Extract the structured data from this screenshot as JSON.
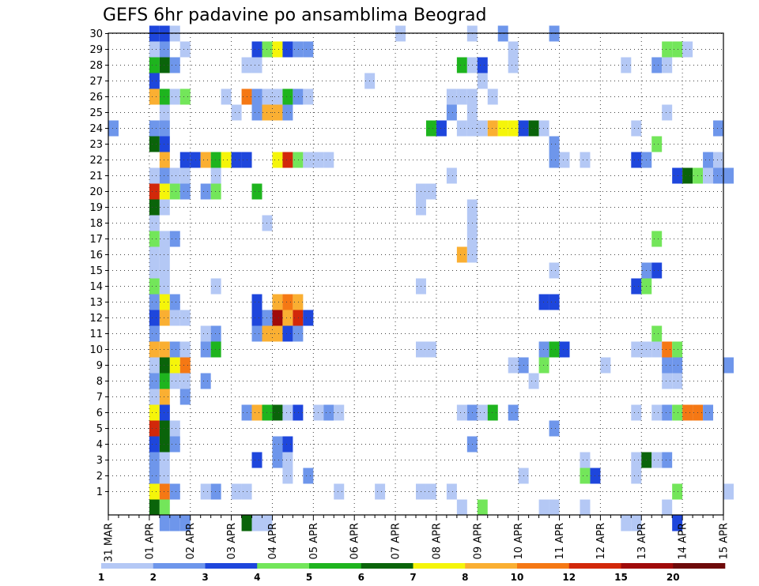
{
  "chart_data": {
    "type": "heatmap",
    "title": "GEFS 6hr padavine po ansamblima Beograd",
    "x_tick_labels": [
      "31 MAR",
      "01 APR",
      "02 APR",
      "03 APR",
      "04 APR",
      "05 APR",
      "06 APR",
      "07 APR",
      "08 APR",
      "09 APR",
      "10 APR",
      "11 APR",
      "12 APR",
      "13 APR",
      "14 APR",
      "15 APR"
    ],
    "y_tick_labels": [
      "1",
      "2",
      "3",
      "4",
      "5",
      "6",
      "7",
      "8",
      "9",
      "10",
      "11",
      "12",
      "13",
      "14",
      "15",
      "16",
      "17",
      "18",
      "19",
      "20",
      "21",
      "22",
      "23",
      "24",
      "25",
      "26",
      "27",
      "28",
      "29",
      "30"
    ],
    "x_unit": "6-hour step (4 per day)",
    "ylim": [
      0,
      30
    ],
    "grid": true,
    "legend_placement": "bottom",
    "colorbar": {
      "labels": [
        "1",
        "2",
        "3",
        "4",
        "5",
        "6",
        "7",
        "8",
        "10",
        "12",
        "15",
        "20"
      ],
      "colors": [
        "#b4c8f5",
        "#6e96eb",
        "#1e46dc",
        "#73e65a",
        "#1eb41e",
        "#0a640a",
        "#f5f50a",
        "#faaf32",
        "#f57814",
        "#d2280a",
        "#a00a0a",
        "#6e0a0a"
      ]
    },
    "values_note": "cells: [ensemble member, 6h step index from 31 MAR 00Z, category index into colorbar]",
    "cells": [
      [
        30,
        4,
        2
      ],
      [
        30,
        5,
        2
      ],
      [
        30,
        6,
        0
      ],
      [
        30,
        28,
        0
      ],
      [
        30,
        35,
        0
      ],
      [
        30,
        38,
        1
      ],
      [
        30,
        43,
        1
      ],
      [
        29,
        4,
        0
      ],
      [
        29,
        5,
        1
      ],
      [
        29,
        7,
        0
      ],
      [
        29,
        14,
        2
      ],
      [
        29,
        15,
        3
      ],
      [
        29,
        16,
        6
      ],
      [
        29,
        17,
        2
      ],
      [
        29,
        18,
        1
      ],
      [
        29,
        19,
        1
      ],
      [
        29,
        39,
        0
      ],
      [
        29,
        54,
        3
      ],
      [
        29,
        55,
        3
      ],
      [
        29,
        56,
        0
      ],
      [
        28,
        4,
        4
      ],
      [
        28,
        5,
        5
      ],
      [
        28,
        6,
        1
      ],
      [
        28,
        13,
        0
      ],
      [
        28,
        14,
        0
      ],
      [
        28,
        34,
        4
      ],
      [
        28,
        35,
        0
      ],
      [
        28,
        36,
        2
      ],
      [
        28,
        39,
        0
      ],
      [
        28,
        50,
        0
      ],
      [
        28,
        53,
        1
      ],
      [
        28,
        54,
        0
      ],
      [
        27,
        4,
        2
      ],
      [
        27,
        25,
        0
      ],
      [
        27,
        36,
        0
      ],
      [
        26,
        4,
        7
      ],
      [
        26,
        5,
        4
      ],
      [
        26,
        6,
        0
      ],
      [
        26,
        7,
        3
      ],
      [
        26,
        11,
        0
      ],
      [
        26,
        13,
        8
      ],
      [
        26,
        14,
        1
      ],
      [
        26,
        15,
        0
      ],
      [
        26,
        16,
        0
      ],
      [
        26,
        17,
        4
      ],
      [
        26,
        18,
        1
      ],
      [
        26,
        19,
        0
      ],
      [
        26,
        33,
        0
      ],
      [
        26,
        34,
        0
      ],
      [
        26,
        35,
        0
      ],
      [
        26,
        37,
        0
      ],
      [
        25,
        5,
        0
      ],
      [
        25,
        12,
        0
      ],
      [
        25,
        14,
        1
      ],
      [
        25,
        15,
        7
      ],
      [
        25,
        16,
        7
      ],
      [
        25,
        17,
        1
      ],
      [
        25,
        33,
        1
      ],
      [
        25,
        35,
        0
      ],
      [
        25,
        54,
        0
      ],
      [
        24,
        0,
        1
      ],
      [
        24,
        4,
        1
      ],
      [
        24,
        5,
        1
      ],
      [
        24,
        31,
        4
      ],
      [
        24,
        32,
        2
      ],
      [
        24,
        34,
        0
      ],
      [
        24,
        35,
        0
      ],
      [
        24,
        36,
        0
      ],
      [
        24,
        37,
        7
      ],
      [
        24,
        38,
        6
      ],
      [
        24,
        39,
        6
      ],
      [
        24,
        40,
        2
      ],
      [
        24,
        41,
        5
      ],
      [
        24,
        42,
        0
      ],
      [
        24,
        51,
        0
      ],
      [
        24,
        59,
        1
      ],
      [
        23,
        4,
        5
      ],
      [
        23,
        5,
        2
      ],
      [
        23,
        43,
        1
      ],
      [
        23,
        53,
        3
      ],
      [
        22,
        5,
        7
      ],
      [
        22,
        7,
        2
      ],
      [
        22,
        8,
        2
      ],
      [
        22,
        9,
        7
      ],
      [
        22,
        10,
        4
      ],
      [
        22,
        11,
        6
      ],
      [
        22,
        12,
        2
      ],
      [
        22,
        13,
        2
      ],
      [
        22,
        16,
        6
      ],
      [
        22,
        17,
        9
      ],
      [
        22,
        18,
        3
      ],
      [
        22,
        19,
        0
      ],
      [
        22,
        20,
        0
      ],
      [
        22,
        21,
        0
      ],
      [
        22,
        43,
        1
      ],
      [
        22,
        44,
        0
      ],
      [
        22,
        46,
        0
      ],
      [
        22,
        51,
        2
      ],
      [
        22,
        52,
        1
      ],
      [
        22,
        58,
        1
      ],
      [
        22,
        59,
        0
      ],
      [
        21,
        4,
        0
      ],
      [
        21,
        5,
        1
      ],
      [
        21,
        6,
        0
      ],
      [
        21,
        7,
        0
      ],
      [
        21,
        10,
        0
      ],
      [
        21,
        33,
        0
      ],
      [
        21,
        55,
        2
      ],
      [
        21,
        56,
        5
      ],
      [
        21,
        57,
        3
      ],
      [
        21,
        58,
        0
      ],
      [
        21,
        59,
        1
      ],
      [
        21,
        60,
        1
      ],
      [
        20,
        4,
        9
      ],
      [
        20,
        5,
        6
      ],
      [
        20,
        6,
        3
      ],
      [
        20,
        7,
        1
      ],
      [
        20,
        9,
        1
      ],
      [
        20,
        10,
        3
      ],
      [
        20,
        14,
        4
      ],
      [
        20,
        30,
        0
      ],
      [
        20,
        31,
        0
      ],
      [
        19,
        4,
        5
      ],
      [
        19,
        5,
        0
      ],
      [
        19,
        30,
        0
      ],
      [
        19,
        35,
        0
      ],
      [
        18,
        4,
        0
      ],
      [
        18,
        15,
        0
      ],
      [
        18,
        35,
        0
      ],
      [
        17,
        4,
        3
      ],
      [
        17,
        5,
        0
      ],
      [
        17,
        6,
        1
      ],
      [
        17,
        35,
        0
      ],
      [
        17,
        53,
        3
      ],
      [
        16,
        4,
        0
      ],
      [
        16,
        5,
        0
      ],
      [
        16,
        34,
        7
      ],
      [
        16,
        35,
        0
      ],
      [
        15,
        4,
        0
      ],
      [
        15,
        5,
        0
      ],
      [
        15,
        43,
        0
      ],
      [
        15,
        52,
        1
      ],
      [
        15,
        53,
        2
      ],
      [
        14,
        4,
        3
      ],
      [
        14,
        5,
        0
      ],
      [
        14,
        10,
        0
      ],
      [
        14,
        30,
        0
      ],
      [
        14,
        51,
        2
      ],
      [
        14,
        52,
        3
      ],
      [
        13,
        4,
        1
      ],
      [
        13,
        5,
        6
      ],
      [
        13,
        6,
        1
      ],
      [
        13,
        14,
        2
      ],
      [
        13,
        16,
        7
      ],
      [
        13,
        17,
        8
      ],
      [
        13,
        18,
        7
      ],
      [
        13,
        42,
        2
      ],
      [
        13,
        43,
        2
      ],
      [
        12,
        4,
        2
      ],
      [
        12,
        5,
        7
      ],
      [
        12,
        6,
        0
      ],
      [
        12,
        7,
        0
      ],
      [
        12,
        14,
        2
      ],
      [
        12,
        15,
        1
      ],
      [
        12,
        16,
        10
      ],
      [
        12,
        17,
        7
      ],
      [
        12,
        18,
        9
      ],
      [
        12,
        19,
        2
      ],
      [
        11,
        4,
        1
      ],
      [
        11,
        9,
        0
      ],
      [
        11,
        10,
        1
      ],
      [
        11,
        14,
        1
      ],
      [
        11,
        15,
        7
      ],
      [
        11,
        16,
        7
      ],
      [
        11,
        17,
        2
      ],
      [
        11,
        18,
        1
      ],
      [
        11,
        53,
        3
      ],
      [
        10,
        4,
        7
      ],
      [
        10,
        5,
        7
      ],
      [
        10,
        6,
        1
      ],
      [
        10,
        7,
        0
      ],
      [
        10,
        9,
        1
      ],
      [
        10,
        10,
        4
      ],
      [
        10,
        30,
        0
      ],
      [
        10,
        31,
        0
      ],
      [
        10,
        42,
        1
      ],
      [
        10,
        43,
        4
      ],
      [
        10,
        44,
        2
      ],
      [
        10,
        51,
        0
      ],
      [
        10,
        52,
        0
      ],
      [
        10,
        53,
        0
      ],
      [
        10,
        54,
        8
      ],
      [
        10,
        55,
        3
      ],
      [
        9,
        4,
        0
      ],
      [
        9,
        5,
        5
      ],
      [
        9,
        6,
        6
      ],
      [
        9,
        7,
        8
      ],
      [
        9,
        39,
        0
      ],
      [
        9,
        40,
        1
      ],
      [
        9,
        42,
        3
      ],
      [
        9,
        48,
        0
      ],
      [
        9,
        54,
        1
      ],
      [
        9,
        55,
        1
      ],
      [
        9,
        60,
        1
      ],
      [
        8,
        4,
        1
      ],
      [
        8,
        5,
        4
      ],
      [
        8,
        6,
        0
      ],
      [
        8,
        7,
        0
      ],
      [
        8,
        9,
        1
      ],
      [
        8,
        41,
        0
      ],
      [
        8,
        54,
        0
      ],
      [
        8,
        55,
        0
      ],
      [
        7,
        4,
        0
      ],
      [
        7,
        5,
        7
      ],
      [
        7,
        7,
        1
      ],
      [
        6,
        4,
        6
      ],
      [
        6,
        5,
        2
      ],
      [
        6,
        13,
        1
      ],
      [
        6,
        14,
        7
      ],
      [
        6,
        15,
        4
      ],
      [
        6,
        16,
        5
      ],
      [
        6,
        17,
        0
      ],
      [
        6,
        18,
        2
      ],
      [
        6,
        20,
        0
      ],
      [
        6,
        21,
        1
      ],
      [
        6,
        22,
        0
      ],
      [
        6,
        34,
        0
      ],
      [
        6,
        35,
        1
      ],
      [
        6,
        36,
        0
      ],
      [
        6,
        37,
        4
      ],
      [
        6,
        39,
        1
      ],
      [
        6,
        51,
        0
      ],
      [
        6,
        53,
        0
      ],
      [
        6,
        54,
        1
      ],
      [
        6,
        55,
        3
      ],
      [
        6,
        56,
        8
      ],
      [
        6,
        57,
        8
      ],
      [
        6,
        58,
        1
      ],
      [
        5,
        4,
        9
      ],
      [
        5,
        5,
        5
      ],
      [
        5,
        6,
        0
      ],
      [
        5,
        43,
        1
      ],
      [
        4,
        4,
        2
      ],
      [
        4,
        5,
        5
      ],
      [
        4,
        6,
        1
      ],
      [
        4,
        16,
        1
      ],
      [
        4,
        17,
        2
      ],
      [
        4,
        35,
        1
      ],
      [
        3,
        4,
        1
      ],
      [
        3,
        5,
        0
      ],
      [
        3,
        14,
        2
      ],
      [
        3,
        16,
        1
      ],
      [
        3,
        17,
        0
      ],
      [
        3,
        46,
        0
      ],
      [
        3,
        51,
        0
      ],
      [
        3,
        52,
        5
      ],
      [
        3,
        53,
        0
      ],
      [
        3,
        54,
        1
      ],
      [
        2,
        4,
        1
      ],
      [
        2,
        5,
        0
      ],
      [
        2,
        17,
        0
      ],
      [
        2,
        19,
        1
      ],
      [
        2,
        40,
        0
      ],
      [
        2,
        46,
        3
      ],
      [
        2,
        47,
        2
      ],
      [
        2,
        51,
        0
      ],
      [
        1,
        4,
        6
      ],
      [
        1,
        5,
        8
      ],
      [
        1,
        6,
        1
      ],
      [
        1,
        9,
        0
      ],
      [
        1,
        10,
        1
      ],
      [
        1,
        12,
        0
      ],
      [
        1,
        13,
        0
      ],
      [
        1,
        22,
        0
      ],
      [
        1,
        26,
        0
      ],
      [
        1,
        30,
        0
      ],
      [
        1,
        31,
        0
      ],
      [
        1,
        33,
        0
      ],
      [
        1,
        55,
        3
      ],
      [
        1,
        60,
        0
      ],
      [
        0,
        4,
        5
      ],
      [
        0,
        5,
        3
      ],
      [
        0,
        34,
        0
      ],
      [
        0,
        36,
        3
      ],
      [
        0,
        42,
        0
      ],
      [
        0,
        43,
        0
      ],
      [
        0,
        46,
        0
      ],
      [
        0,
        54,
        0
      ],
      [
        -1,
        5,
        1
      ],
      [
        -1,
        6,
        1
      ],
      [
        -1,
        7,
        1
      ],
      [
        -1,
        13,
        5
      ],
      [
        -1,
        14,
        0
      ],
      [
        -1,
        15,
        0
      ],
      [
        -1,
        50,
        0
      ],
      [
        -1,
        51,
        0
      ],
      [
        -1,
        55,
        2
      ]
    ]
  }
}
